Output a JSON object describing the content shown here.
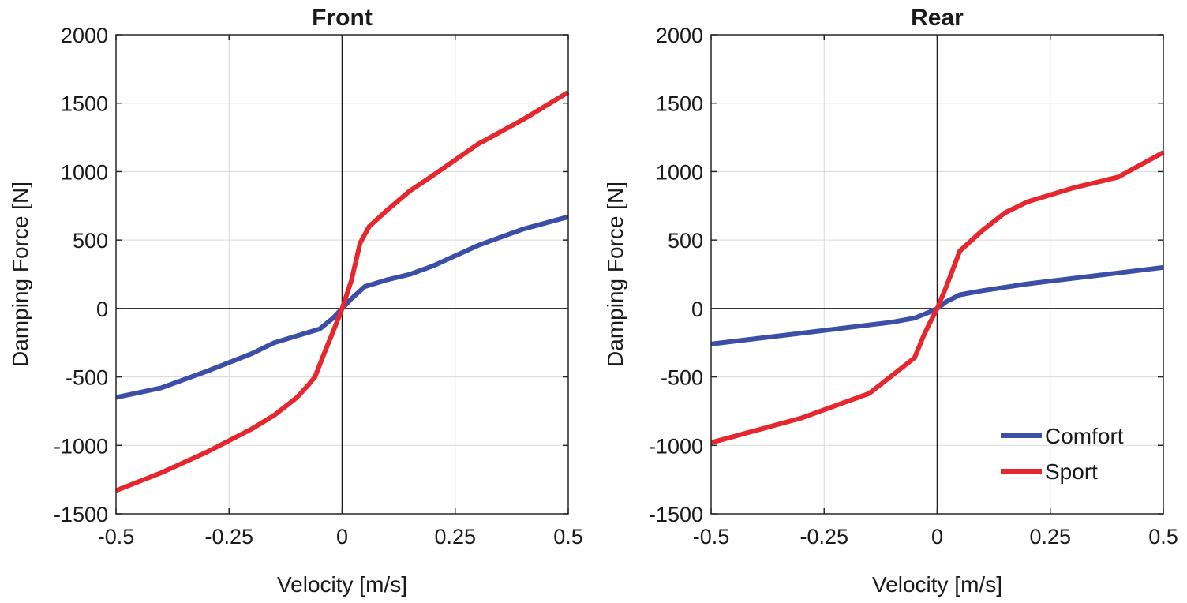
{
  "chart_data": [
    {
      "type": "line",
      "title": "Front",
      "xlabel": "Velocity [m/s]",
      "ylabel": "Damping Force [N]",
      "xlim": [
        -0.5,
        0.5
      ],
      "ylim": [
        -1500,
        2000
      ],
      "xticks": [
        -0.5,
        -0.25,
        0,
        0.25,
        0.5
      ],
      "xtick_labels": [
        "-0.5",
        "-0.25",
        "0",
        "0.25",
        "0.5"
      ],
      "yticks": [
        -1500,
        -1000,
        -500,
        0,
        500,
        1000,
        1500,
        2000
      ],
      "ytick_labels": [
        "-1500",
        "-1000",
        "-500",
        "0",
        "500",
        "1000",
        "1500",
        "2000"
      ],
      "grid": true,
      "series": [
        {
          "name": "Comfort",
          "color": "#3a4fa5",
          "x": [
            -0.5,
            -0.4,
            -0.3,
            -0.2,
            -0.15,
            -0.1,
            -0.05,
            -0.02,
            0,
            0.02,
            0.05,
            0.1,
            0.15,
            0.2,
            0.3,
            0.4,
            0.5
          ],
          "y": [
            -650,
            -580,
            -460,
            -330,
            -250,
            -200,
            -150,
            -70,
            0,
            70,
            160,
            210,
            250,
            310,
            460,
            580,
            670
          ]
        },
        {
          "name": "Sport",
          "color": "#e8262d",
          "x": [
            -0.5,
            -0.4,
            -0.3,
            -0.2,
            -0.15,
            -0.1,
            -0.075,
            -0.06,
            -0.04,
            -0.02,
            0,
            0.02,
            0.04,
            0.06,
            0.1,
            0.15,
            0.2,
            0.3,
            0.4,
            0.5
          ],
          "y": [
            -1330,
            -1200,
            -1050,
            -880,
            -780,
            -650,
            -560,
            -500,
            -330,
            -170,
            0,
            200,
            480,
            600,
            720,
            860,
            970,
            1200,
            1380,
            1580
          ]
        }
      ]
    },
    {
      "type": "line",
      "title": "Rear",
      "xlabel": "Velocity [m/s]",
      "ylabel": "Damping Force [N]",
      "xlim": [
        -0.5,
        0.5
      ],
      "ylim": [
        -1500,
        2000
      ],
      "xticks": [
        -0.5,
        -0.25,
        0,
        0.25,
        0.5
      ],
      "xtick_labels": [
        "-0.5",
        "-0.25",
        "0",
        "0.25",
        "0.5"
      ],
      "yticks": [
        -1500,
        -1000,
        -500,
        0,
        500,
        1000,
        1500,
        2000
      ],
      "ytick_labels": [
        "-1500",
        "-1000",
        "-500",
        "0",
        "500",
        "1000",
        "1500",
        "2000"
      ],
      "grid": true,
      "legend": {
        "position": "bottom-right",
        "entries": [
          "Comfort",
          "Sport"
        ]
      },
      "series": [
        {
          "name": "Comfort",
          "color": "#3a4fa5",
          "x": [
            -0.5,
            -0.3,
            -0.1,
            -0.05,
            -0.02,
            0,
            0.02,
            0.05,
            0.1,
            0.2,
            0.3,
            0.4,
            0.5
          ],
          "y": [
            -260,
            -180,
            -100,
            -70,
            -30,
            0,
            50,
            100,
            130,
            180,
            220,
            260,
            300
          ]
        },
        {
          "name": "Sport",
          "color": "#e8262d",
          "x": [
            -0.5,
            -0.3,
            -0.15,
            -0.1,
            -0.05,
            -0.03,
            -0.02,
            0,
            0.02,
            0.05,
            0.07,
            0.1,
            0.15,
            0.2,
            0.3,
            0.4,
            0.5
          ],
          "y": [
            -980,
            -800,
            -620,
            -490,
            -360,
            -200,
            -130,
            0,
            160,
            420,
            480,
            570,
            700,
            780,
            880,
            960,
            1140
          ]
        }
      ]
    }
  ]
}
